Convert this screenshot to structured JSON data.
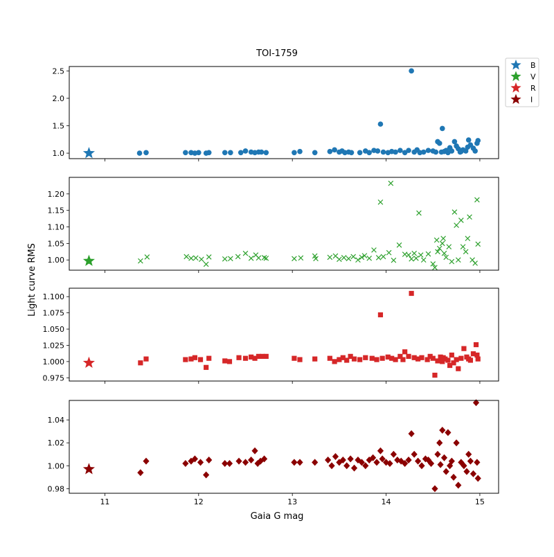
{
  "chart_data": {
    "type": "scatter",
    "title": "TOI-1759",
    "xlabel": "Gaia G mag",
    "ylabel": "Light curve RMS",
    "xlim": [
      10.62,
      15.2
    ],
    "x_ticks": [
      11,
      12,
      13,
      14,
      15
    ],
    "x_tick_labels": [
      "11",
      "12",
      "13",
      "14",
      "15"
    ],
    "legend": {
      "position": "outside-top-right",
      "entries": [
        {
          "label": "B",
          "color": "#1f77b4"
        },
        {
          "label": "V",
          "color": "#2ca02c"
        },
        {
          "label": "R",
          "color": "#d62728"
        },
        {
          "label": "I",
          "color": "#8b0000"
        }
      ]
    },
    "target": {
      "name": "TOI-1759",
      "gmag": 10.83
    },
    "panels": [
      {
        "band": "B",
        "marker": "circle",
        "color": "#1f77b4",
        "ylim": [
          0.9,
          2.58
        ],
        "y_ticks": [
          1.0,
          1.5,
          2.0,
          2.5
        ],
        "y_tick_labels": [
          "1.0",
          "1.5",
          "2.0",
          "2.5"
        ],
        "target_value": 1.0,
        "points": [
          [
            11.37,
            1.0
          ],
          [
            11.44,
            1.01
          ],
          [
            11.86,
            1.01
          ],
          [
            11.92,
            1.01
          ],
          [
            11.96,
            1.0
          ],
          [
            12.0,
            1.01
          ],
          [
            12.08,
            1.0
          ],
          [
            12.11,
            1.01
          ],
          [
            12.28,
            1.01
          ],
          [
            12.34,
            1.01
          ],
          [
            12.45,
            1.01
          ],
          [
            12.5,
            1.04
          ],
          [
            12.56,
            1.02
          ],
          [
            12.6,
            1.01
          ],
          [
            12.64,
            1.02
          ],
          [
            12.67,
            1.02
          ],
          [
            12.72,
            1.01
          ],
          [
            13.02,
            1.01
          ],
          [
            13.08,
            1.03
          ],
          [
            13.24,
            1.01
          ],
          [
            13.4,
            1.03
          ],
          [
            13.45,
            1.06
          ],
          [
            13.5,
            1.02
          ],
          [
            13.53,
            1.04
          ],
          [
            13.56,
            1.01
          ],
          [
            13.6,
            1.02
          ],
          [
            13.63,
            1.01
          ],
          [
            13.72,
            1.01
          ],
          [
            13.78,
            1.04
          ],
          [
            13.82,
            1.01
          ],
          [
            13.87,
            1.05
          ],
          [
            13.91,
            1.04
          ],
          [
            13.94,
            1.53
          ],
          [
            13.97,
            1.02
          ],
          [
            14.02,
            1.01
          ],
          [
            14.06,
            1.03
          ],
          [
            14.1,
            1.02
          ],
          [
            14.15,
            1.05
          ],
          [
            14.2,
            1.01
          ],
          [
            14.24,
            1.05
          ],
          [
            14.27,
            2.5
          ],
          [
            14.3,
            1.02
          ],
          [
            14.33,
            1.06
          ],
          [
            14.36,
            1.01
          ],
          [
            14.4,
            1.02
          ],
          [
            14.45,
            1.05
          ],
          [
            14.5,
            1.04
          ],
          [
            14.53,
            1.02
          ],
          [
            14.55,
            1.21
          ],
          [
            14.57,
            1.18
          ],
          [
            14.6,
            1.45
          ],
          [
            14.62,
            1.03
          ],
          [
            14.64,
            1.05
          ],
          [
            14.66,
            1.01
          ],
          [
            14.7,
            1.04
          ],
          [
            14.73,
            1.21
          ],
          [
            14.75,
            1.13
          ],
          [
            14.77,
            1.08
          ],
          [
            14.79,
            1.02
          ],
          [
            14.82,
            1.06
          ],
          [
            14.85,
            1.04
          ],
          [
            14.88,
            1.24
          ],
          [
            14.9,
            1.15
          ],
          [
            14.93,
            1.09
          ],
          [
            14.97,
            1.18
          ],
          [
            14.98,
            1.23
          ],
          [
            14.95,
            1.04
          ],
          [
            14.87,
            1.11
          ],
          [
            14.8,
            1.03
          ],
          [
            14.68,
            1.1
          ],
          [
            14.59,
            1.02
          ]
        ]
      },
      {
        "band": "V",
        "marker": "x",
        "color": "#2ca02c",
        "ylim": [
          0.969,
          1.25
        ],
        "y_ticks": [
          1.0,
          1.05,
          1.1,
          1.15,
          1.2
        ],
        "y_tick_labels": [
          "1.00",
          "1.05",
          "1.10",
          "1.15",
          "1.20"
        ],
        "target_value": 0.997,
        "points": [
          [
            11.38,
            0.997
          ],
          [
            11.45,
            1.009
          ],
          [
            11.87,
            1.01
          ],
          [
            11.92,
            1.005
          ],
          [
            11.97,
            1.006
          ],
          [
            12.03,
            1.002
          ],
          [
            12.08,
            0.987
          ],
          [
            12.11,
            1.009
          ],
          [
            12.28,
            1.003
          ],
          [
            12.34,
            1.004
          ],
          [
            12.42,
            1.01
          ],
          [
            12.5,
            1.02
          ],
          [
            12.56,
            1.005
          ],
          [
            12.61,
            1.015
          ],
          [
            12.64,
            1.006
          ],
          [
            12.7,
            1.007
          ],
          [
            12.72,
            1.005
          ],
          [
            13.02,
            1.004
          ],
          [
            13.09,
            1.006
          ],
          [
            13.24,
            1.012
          ],
          [
            13.25,
            1.004
          ],
          [
            13.4,
            1.008
          ],
          [
            13.46,
            1.012
          ],
          [
            13.5,
            1.002
          ],
          [
            13.55,
            1.007
          ],
          [
            13.6,
            1.004
          ],
          [
            13.65,
            1.01
          ],
          [
            13.7,
            1.0
          ],
          [
            13.74,
            1.008
          ],
          [
            13.77,
            1.013
          ],
          [
            13.82,
            1.005
          ],
          [
            13.87,
            1.03
          ],
          [
            13.92,
            1.007
          ],
          [
            13.94,
            1.175
          ],
          [
            13.97,
            1.01
          ],
          [
            14.03,
            1.022
          ],
          [
            14.05,
            1.232
          ],
          [
            14.08,
            0.999
          ],
          [
            14.14,
            1.045
          ],
          [
            14.2,
            1.017
          ],
          [
            14.24,
            1.015
          ],
          [
            14.27,
            1.003
          ],
          [
            14.3,
            1.02
          ],
          [
            14.32,
            1.005
          ],
          [
            14.35,
            1.142
          ],
          [
            14.37,
            1.015
          ],
          [
            14.4,
            1.0
          ],
          [
            14.45,
            1.018
          ],
          [
            14.5,
            0.988
          ],
          [
            14.52,
            0.977
          ],
          [
            14.54,
            1.06
          ],
          [
            14.57,
            1.035
          ],
          [
            14.6,
            1.05
          ],
          [
            14.62,
            1.02
          ],
          [
            14.64,
            1.008
          ],
          [
            14.67,
            1.04
          ],
          [
            14.7,
            0.995
          ],
          [
            14.73,
            1.145
          ],
          [
            14.75,
            1.105
          ],
          [
            14.77,
            1.0
          ],
          [
            14.8,
            1.12
          ],
          [
            14.82,
            1.04
          ],
          [
            14.85,
            1.025
          ],
          [
            14.87,
            1.065
          ],
          [
            14.89,
            1.13
          ],
          [
            14.92,
            1.0
          ],
          [
            14.95,
            0.99
          ],
          [
            14.97,
            1.182
          ],
          [
            14.98,
            1.048
          ],
          [
            14.61,
            1.065
          ],
          [
            14.55,
            1.025
          ]
        ]
      },
      {
        "band": "R",
        "marker": "square",
        "color": "#d62728",
        "ylim": [
          0.97,
          1.113
        ],
        "y_ticks": [
          0.975,
          1.0,
          1.025,
          1.05,
          1.075,
          1.1
        ],
        "y_tick_labels": [
          "0.975",
          "1.000",
          "1.025",
          "1.050",
          "1.075",
          "1.100"
        ],
        "target_value": 0.998,
        "points": [
          [
            11.38,
            0.998
          ],
          [
            11.44,
            1.004
          ],
          [
            11.86,
            1.003
          ],
          [
            11.92,
            1.004
          ],
          [
            11.96,
            1.006
          ],
          [
            12.02,
            1.003
          ],
          [
            12.08,
            0.991
          ],
          [
            12.11,
            1.005
          ],
          [
            12.28,
            1.001
          ],
          [
            12.33,
            1.0
          ],
          [
            12.43,
            1.006
          ],
          [
            12.5,
            1.005
          ],
          [
            12.56,
            1.007
          ],
          [
            12.6,
            1.005
          ],
          [
            12.64,
            1.008
          ],
          [
            12.68,
            1.008
          ],
          [
            12.72,
            1.008
          ],
          [
            13.02,
            1.005
          ],
          [
            13.08,
            1.003
          ],
          [
            13.24,
            1.004
          ],
          [
            13.4,
            1.005
          ],
          [
            13.45,
            1.0
          ],
          [
            13.5,
            1.003
          ],
          [
            13.54,
            1.006
          ],
          [
            13.58,
            1.002
          ],
          [
            13.62,
            1.008
          ],
          [
            13.66,
            1.004
          ],
          [
            13.72,
            1.003
          ],
          [
            13.78,
            1.006
          ],
          [
            13.85,
            1.005
          ],
          [
            13.9,
            1.003
          ],
          [
            13.94,
            1.072
          ],
          [
            13.96,
            1.005
          ],
          [
            14.02,
            1.007
          ],
          [
            14.06,
            1.005
          ],
          [
            14.1,
            1.003
          ],
          [
            14.15,
            1.008
          ],
          [
            14.18,
            1.003
          ],
          [
            14.2,
            1.015
          ],
          [
            14.24,
            1.008
          ],
          [
            14.27,
            1.105
          ],
          [
            14.3,
            1.006
          ],
          [
            14.34,
            1.004
          ],
          [
            14.38,
            1.006
          ],
          [
            14.44,
            1.003
          ],
          [
            14.47,
            1.008
          ],
          [
            14.5,
            1.005
          ],
          [
            14.52,
            0.979
          ],
          [
            14.55,
            1.001
          ],
          [
            14.58,
            1.007
          ],
          [
            14.6,
            1.0
          ],
          [
            14.63,
            1.004
          ],
          [
            14.66,
            1.002
          ],
          [
            14.7,
            1.01
          ],
          [
            14.72,
            0.998
          ],
          [
            14.75,
            1.003
          ],
          [
            14.77,
            0.989
          ],
          [
            14.8,
            1.005
          ],
          [
            14.83,
            1.02
          ],
          [
            14.86,
            1.007
          ],
          [
            14.88,
            1.004
          ],
          [
            14.9,
            1.002
          ],
          [
            14.93,
            1.012
          ],
          [
            14.96,
            1.026
          ],
          [
            14.97,
            1.01
          ],
          [
            14.98,
            1.004
          ],
          [
            14.68,
            0.994
          ],
          [
            14.61,
            1.006
          ]
        ]
      },
      {
        "band": "I",
        "marker": "diamond",
        "color": "#8b0000",
        "ylim": [
          0.976,
          1.057
        ],
        "y_ticks": [
          0.98,
          1.0,
          1.02,
          1.04
        ],
        "y_tick_labels": [
          "0.98",
          "1.00",
          "1.02",
          "1.04"
        ],
        "target_value": 0.997,
        "points": [
          [
            11.38,
            0.994
          ],
          [
            11.44,
            1.004
          ],
          [
            11.86,
            1.002
          ],
          [
            11.92,
            1.004
          ],
          [
            11.96,
            1.006
          ],
          [
            12.02,
            1.003
          ],
          [
            12.08,
            0.992
          ],
          [
            12.11,
            1.005
          ],
          [
            12.28,
            1.002
          ],
          [
            12.33,
            1.002
          ],
          [
            12.43,
            1.004
          ],
          [
            12.5,
            1.003
          ],
          [
            12.56,
            1.005
          ],
          [
            12.6,
            1.013
          ],
          [
            12.63,
            1.002
          ],
          [
            12.66,
            1.004
          ],
          [
            12.7,
            1.006
          ],
          [
            13.02,
            1.003
          ],
          [
            13.08,
            1.003
          ],
          [
            13.24,
            1.003
          ],
          [
            13.38,
            1.005
          ],
          [
            13.42,
            1.0
          ],
          [
            13.46,
            1.008
          ],
          [
            13.5,
            1.003
          ],
          [
            13.54,
            1.005
          ],
          [
            13.58,
            1.0
          ],
          [
            13.62,
            1.006
          ],
          [
            13.66,
            0.998
          ],
          [
            13.7,
            1.005
          ],
          [
            13.74,
            1.003
          ],
          [
            13.78,
            1.0
          ],
          [
            13.82,
            1.005
          ],
          [
            13.86,
            1.007
          ],
          [
            13.9,
            1.003
          ],
          [
            13.94,
            1.013
          ],
          [
            13.96,
            1.006
          ],
          [
            14.0,
            1.003
          ],
          [
            14.04,
            1.002
          ],
          [
            14.08,
            1.01
          ],
          [
            14.12,
            1.005
          ],
          [
            14.16,
            1.004
          ],
          [
            14.2,
            1.002
          ],
          [
            14.24,
            1.005
          ],
          [
            14.27,
            1.028
          ],
          [
            14.3,
            1.01
          ],
          [
            14.34,
            1.004
          ],
          [
            14.38,
            1.0
          ],
          [
            14.42,
            1.006
          ],
          [
            14.45,
            1.005
          ],
          [
            14.48,
            1.002
          ],
          [
            14.52,
            0.98
          ],
          [
            14.55,
            1.01
          ],
          [
            14.57,
            1.02
          ],
          [
            14.6,
            1.031
          ],
          [
            14.62,
            1.007
          ],
          [
            14.64,
            0.995
          ],
          [
            14.66,
            1.029
          ],
          [
            14.7,
            1.004
          ],
          [
            14.72,
            0.99
          ],
          [
            14.75,
            1.02
          ],
          [
            14.77,
            0.983
          ],
          [
            14.8,
            1.003
          ],
          [
            14.83,
            1.0
          ],
          [
            14.86,
            0.995
          ],
          [
            14.88,
            1.01
          ],
          [
            14.9,
            1.004
          ],
          [
            14.93,
            0.993
          ],
          [
            14.96,
            1.055
          ],
          [
            14.97,
            1.003
          ],
          [
            14.98,
            0.989
          ],
          [
            14.68,
            1.0
          ],
          [
            14.58,
            1.001
          ]
        ]
      }
    ]
  }
}
